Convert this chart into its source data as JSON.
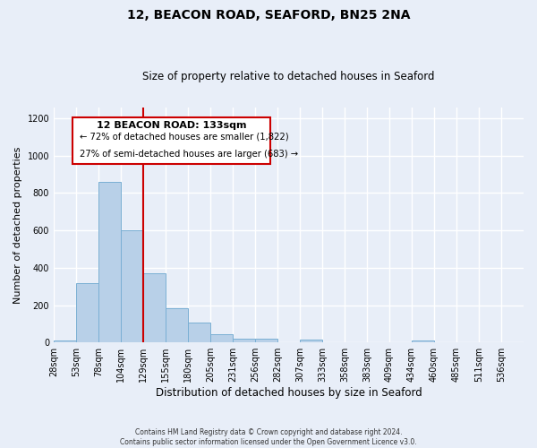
{
  "title": "12, BEACON ROAD, SEAFORD, BN25 2NA",
  "subtitle": "Size of property relative to detached houses in Seaford",
  "xlabel": "Distribution of detached houses by size in Seaford",
  "ylabel": "Number of detached properties",
  "footer_line1": "Contains HM Land Registry data © Crown copyright and database right 2024.",
  "footer_line2": "Contains public sector information licensed under the Open Government Licence v3.0.",
  "bin_labels": [
    "28sqm",
    "53sqm",
    "78sqm",
    "104sqm",
    "129sqm",
    "155sqm",
    "180sqm",
    "205sqm",
    "231sqm",
    "256sqm",
    "282sqm",
    "307sqm",
    "333sqm",
    "358sqm",
    "383sqm",
    "409sqm",
    "434sqm",
    "460sqm",
    "485sqm",
    "511sqm",
    "536sqm"
  ],
  "bar_values": [
    10,
    320,
    860,
    600,
    370,
    185,
    105,
    45,
    20,
    20,
    0,
    15,
    0,
    0,
    0,
    0,
    10,
    0,
    0,
    0,
    0
  ],
  "bar_color": "#b8d0e8",
  "bar_edge_color": "#7aafd4",
  "ylim": [
    0,
    1260
  ],
  "yticks": [
    0,
    200,
    400,
    600,
    800,
    1000,
    1200
  ],
  "property_line_x": 4,
  "property_line_color": "#cc0000",
  "annotation_title": "12 BEACON ROAD: 133sqm",
  "annotation_line1": "← 72% of detached houses are smaller (1,822)",
  "annotation_line2": "27% of semi-detached houses are larger (683) →",
  "bg_color": "#e8eef8"
}
